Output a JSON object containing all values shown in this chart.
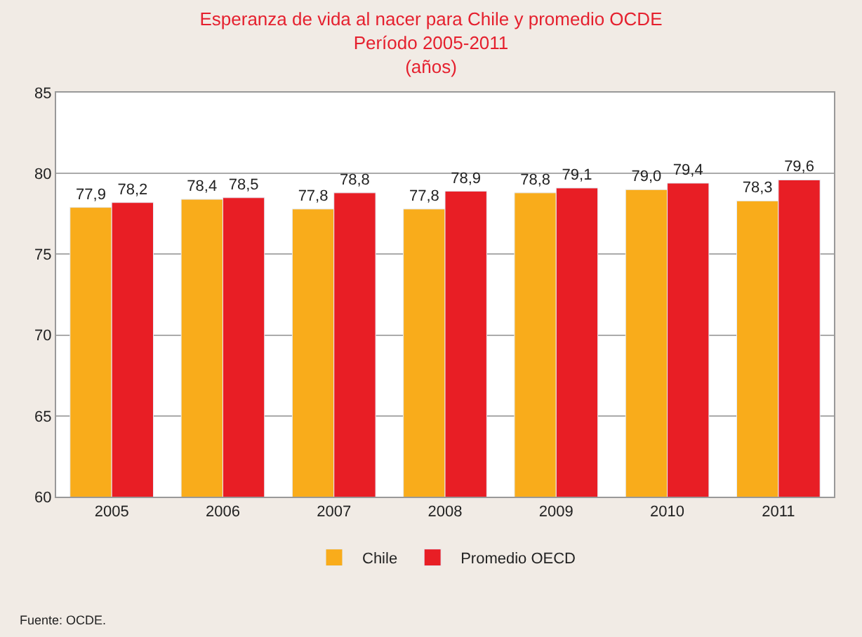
{
  "chart_data": {
    "type": "bar",
    "title": "Esperanza de vida al nacer para Chile y promedio OCDE\nPeríodo 2005-2011\n(años)",
    "categories": [
      "2005",
      "2006",
      "2007",
      "2008",
      "2009",
      "2010",
      "2011"
    ],
    "series": [
      {
        "name": "Chile",
        "color": "#f9ac1b",
        "values": [
          77.9,
          78.4,
          77.8,
          77.8,
          78.8,
          79.0,
          78.3
        ],
        "value_labels": [
          "77,9",
          "78,4",
          "77,8",
          "77,8",
          "78,8",
          "79,0",
          "78,3"
        ]
      },
      {
        "name": "Promedio OECD",
        "color": "#e81e25",
        "values": [
          78.2,
          78.5,
          78.8,
          78.9,
          79.1,
          79.4,
          79.6
        ],
        "value_labels": [
          "78,2",
          "78,5",
          "78,8",
          "78,9",
          "79,1",
          "79,4",
          "79,6"
        ]
      }
    ],
    "ylim": [
      60,
      85
    ],
    "yticks": [
      60,
      65,
      70,
      75,
      80,
      85
    ],
    "grid": "y",
    "legend": "bottom",
    "annotations": [
      "Fuente: OCDE."
    ]
  }
}
